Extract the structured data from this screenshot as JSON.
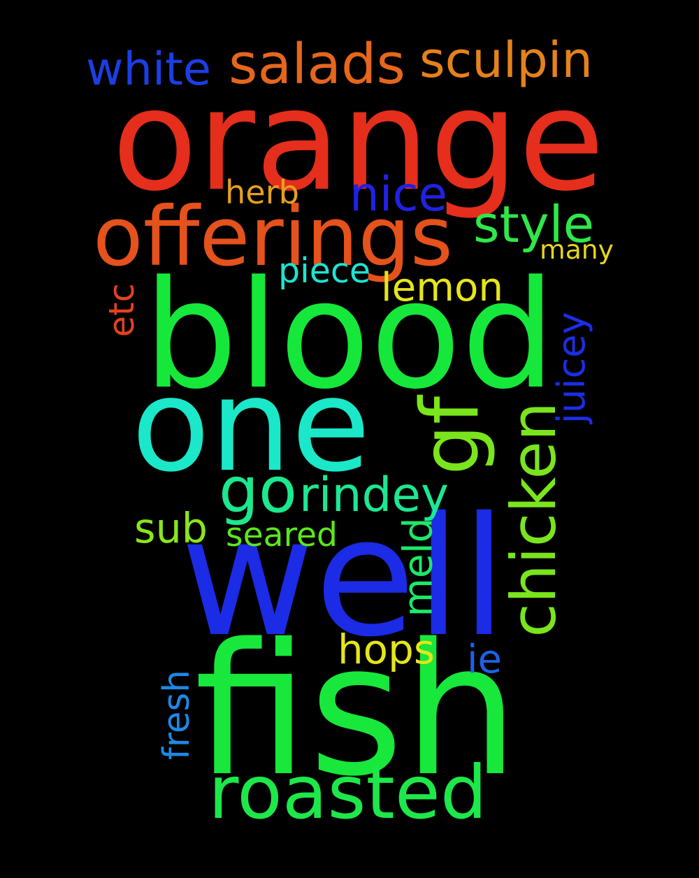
{
  "background": "#000000",
  "words": [
    {
      "text": "orange",
      "color": "#e52e1c",
      "orientation": "horizontal"
    },
    {
      "text": "blood",
      "color": "#15e83a",
      "orientation": "horizontal"
    },
    {
      "text": "one",
      "color": "#1ae8c8",
      "orientation": "horizontal"
    },
    {
      "text": "well",
      "color": "#1c2be5",
      "orientation": "horizontal"
    },
    {
      "text": "fish",
      "color": "#17e83b",
      "orientation": "horizontal"
    },
    {
      "text": "roasted",
      "color": "#1de84a",
      "orientation": "horizontal"
    },
    {
      "text": "offerings",
      "color": "#e5521c",
      "orientation": "horizontal"
    },
    {
      "text": "salads",
      "color": "#e5661c",
      "orientation": "horizontal"
    },
    {
      "text": "sculpin",
      "color": "#e5821c",
      "orientation": "horizontal"
    },
    {
      "text": "white",
      "color": "#1c3ee5",
      "orientation": "horizontal"
    },
    {
      "text": "nice",
      "color": "#2121e5",
      "orientation": "horizontal"
    },
    {
      "text": "herb",
      "color": "#e5a01c",
      "orientation": "horizontal"
    },
    {
      "text": "style",
      "color": "#2ee84a",
      "orientation": "horizontal"
    },
    {
      "text": "many",
      "color": "#e5d61c",
      "orientation": "horizontal"
    },
    {
      "text": "piece",
      "color": "#1ce5d2",
      "orientation": "horizontal"
    },
    {
      "text": "lemon",
      "color": "#e5e51c",
      "orientation": "horizontal"
    },
    {
      "text": "etc",
      "color": "#e5421c",
      "orientation": "vertical"
    },
    {
      "text": "juicey",
      "color": "#1c2ee5",
      "orientation": "vertical"
    },
    {
      "text": "gf",
      "color": "#7ae51c",
      "orientation": "vertical"
    },
    {
      "text": "chicken",
      "color": "#7ae51c",
      "orientation": "vertical"
    },
    {
      "text": "go",
      "color": "#1ce88e",
      "orientation": "horizontal"
    },
    {
      "text": "rindey",
      "color": "#1ce892",
      "orientation": "horizontal"
    },
    {
      "text": "sub",
      "color": "#8ae51c",
      "orientation": "horizontal"
    },
    {
      "text": "seared",
      "color": "#5ae81c",
      "orientation": "horizontal"
    },
    {
      "text": "meld",
      "color": "#1ce86a",
      "orientation": "vertical"
    },
    {
      "text": "hops",
      "color": "#e5e51c",
      "orientation": "horizontal"
    },
    {
      "text": "ie",
      "color": "#1c62e5",
      "orientation": "horizontal"
    },
    {
      "text": "fresh",
      "color": "#1c8ae5",
      "orientation": "vertical"
    }
  ]
}
